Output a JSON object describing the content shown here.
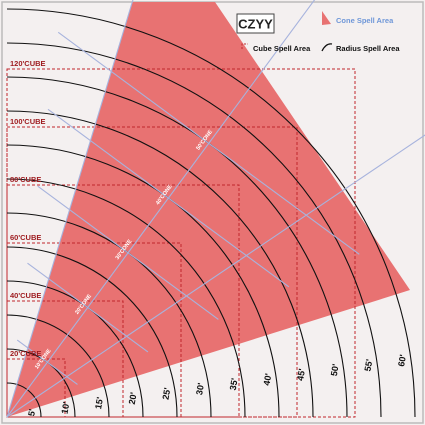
{
  "brand": {
    "logo_text": "CZYY"
  },
  "legend": {
    "cone_label": "Cone Spell Area",
    "cube_label": "Cube Spell Area",
    "radius_label": "Radius Spell Area"
  },
  "cube_labels": [
    "20'CUBE",
    "40'CUBE",
    "60'CUBE",
    "80'CUBE",
    "100'CUBE",
    "120'CUBE"
  ],
  "radius_labels": [
    "5'",
    "10'",
    "15'",
    "20'",
    "25'",
    "30'",
    "35'",
    "40'",
    "45'",
    "50'",
    "55'",
    "60'"
  ],
  "cone_labels": [
    "10'CONE",
    "20'CONE",
    "30'CONE",
    "40'CONE",
    "50'CONE"
  ],
  "colors": {
    "background": "#f4f0f0",
    "cone_fill": "#e87272",
    "cube_line": "#c0262c",
    "arc_line": "#111111",
    "cone_guide": "#a7b3dd",
    "frame": "#bbbbbb",
    "legend_cone_text": "#6f97d8",
    "legend_dark_text": "#111111",
    "cube_label_text": "#9e1b1f",
    "radius_label_text": "#111111"
  }
}
